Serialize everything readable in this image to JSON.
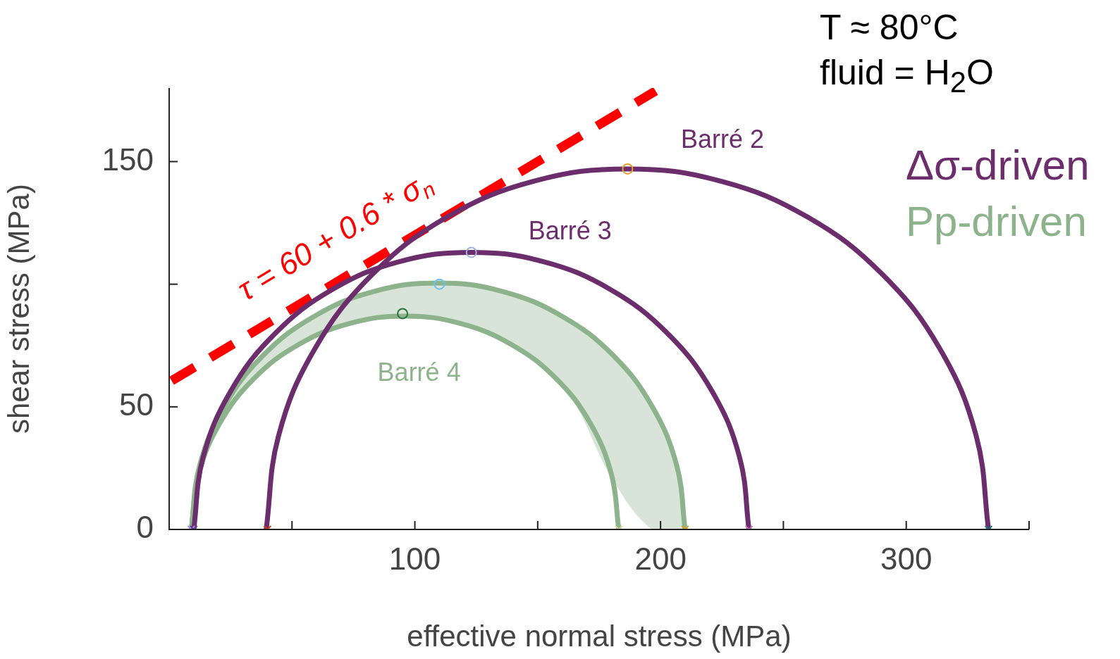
{
  "chart_data": {
    "type": "line",
    "xlabel": "effective normal stress (MPa)",
    "ylabel": "shear stress (MPa)",
    "xlim": [
      0,
      350
    ],
    "ylim": [
      0,
      180
    ],
    "xticks": [
      {
        "value": 50,
        "label": null
      },
      100,
      {
        "value": 150,
        "label": null
      },
      200,
      {
        "value": 250,
        "label": null
      },
      300,
      {
        "value": 350,
        "label": null
      }
    ],
    "yticks": [
      0,
      50,
      {
        "value": 100,
        "label": null
      },
      150
    ],
    "grid": false,
    "legend": false,
    "annotations": [
      "T ≈ 80°C",
      "fluid = H$_{2}$O",
      "Δσ-driven",
      "Pp-driven"
    ],
    "series": [
      {
        "name": "Barré 2",
        "color": "#6b2d6b",
        "marker": "none",
        "x": [
          39.5,
          44.5,
          59.2,
          82.6,
          113.0,
          148.4,
          186.5,
          224.6,
          260.0,
          290.4,
          313.8,
          328.5,
          333.5
        ],
        "values": [
          0,
          38.1,
          73.5,
          103.9,
          127.3,
          142.0,
          147,
          142.0,
          127.3,
          103.9,
          73.5,
          38.1,
          0
        ]
      },
      {
        "name": "Barré 3",
        "color": "#6b2d6b",
        "marker": "none",
        "x": [
          10,
          13.8,
          25.1,
          43.1,
          66.5,
          93.7,
          123,
          152.3,
          179.5,
          202.9,
          220.9,
          232.2,
          236
        ],
        "values": [
          0,
          29.3,
          56.5,
          79.9,
          97.9,
          109.2,
          113,
          109.2,
          97.9,
          79.9,
          56.5,
          29.3,
          0
        ]
      },
      {
        "color": "#8db38d",
        "marker": "none",
        "x": [
          9,
          12.4,
          22.5,
          38.4,
          59.2,
          83.5,
          109.5,
          135.5,
          159.8,
          180.6,
          196.5,
          206.6,
          210
        ],
        "values": [
          0,
          26.0,
          50.3,
          71.1,
          87.0,
          97.1,
          100.5,
          97.1,
          87.0,
          71.1,
          50.3,
          26.0,
          0
        ],
        "lower": [
          0,
          24.1,
          46.6,
          65.2,
          78.8,
          86.1,
          85.9,
          77.5,
          59.2,
          20.3,
          0,
          0,
          0
        ],
        "upper": [
          0,
          26.0,
          50.3,
          71.1,
          87.0,
          97.1,
          100.5,
          97.1,
          87.0,
          71.1,
          50.3,
          26.0,
          0
        ]
      },
      {
        "name": "Barré 4",
        "color": "#8db38d",
        "marker": "none",
        "x": [
          9,
          12.0,
          20.7,
          34.5,
          52.5,
          73.5,
          96,
          118.5,
          139.5,
          157.5,
          171.3,
          180.0,
          183
        ],
        "values": [
          0,
          22.5,
          43.5,
          61.5,
          75.3,
          84.0,
          87,
          84.0,
          75.3,
          61.5,
          43.5,
          22.5,
          0
        ]
      },
      {
        "name": "τ = 60 + 0.6 * σ$_{n}$",
        "color": "#ff0000",
        "marker": "none",
        "line_style": "dashed",
        "x": [
          1,
          198
        ],
        "values": [
          60.6,
          178.8
        ]
      },
      {
        "type": "scatter",
        "marker": "circle",
        "x": [
          186.6,
          123,
          110,
          95
        ],
        "values": [
          147,
          113,
          100,
          88
        ],
        "colors": [
          "#e0a030",
          "#a0b4dc",
          "#6cc0ee",
          "#2a7040"
        ]
      },
      {
        "type": "scatter",
        "marker": "cross",
        "x": [
          9,
          10,
          40,
          183,
          210,
          236,
          333.5
        ],
        "values": [
          0,
          0,
          0,
          0,
          0,
          0,
          0
        ],
        "colors": [
          "#b090f0",
          "#6b3a8a",
          "#d04010",
          "#d8d8a0",
          "#e0a020",
          "#d070c0",
          "#108070"
        ]
      }
    ]
  }
}
